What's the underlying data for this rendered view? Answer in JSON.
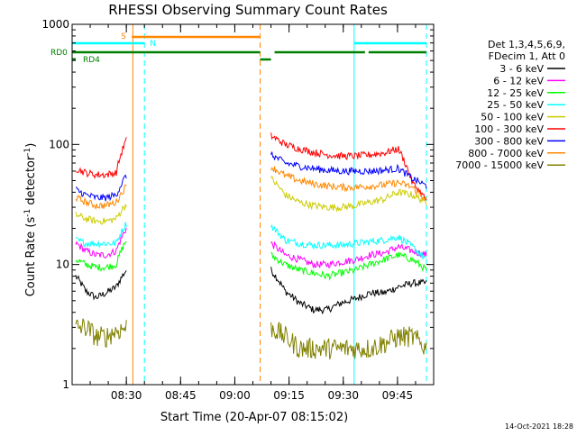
{
  "chart_data": {
    "type": "line",
    "title": "RHESSI Observing Summary Count Rates",
    "xlabel": "Start Time (20-Apr-07 08:15:02)",
    "ylabel_main": "Count Rate (s",
    "ylabel_sup1": "-1",
    "ylabel_mid": " detector",
    "ylabel_sup2": "-1",
    "ylabel_end": ")",
    "y_scale": "log",
    "ylim": [
      1,
      1000
    ],
    "xlim_minutes_after_0815": [
      0,
      100
    ],
    "x_ticks": [
      {
        "label": "08:30",
        "t": 15
      },
      {
        "label": "08:45",
        "t": 30
      },
      {
        "label": "09:00",
        "t": 45
      },
      {
        "label": "09:15",
        "t": 60
      },
      {
        "label": "09:30",
        "t": 75
      },
      {
        "label": "09:45",
        "t": 90
      }
    ],
    "y_ticks": [
      {
        "label": "1",
        "value": 1
      },
      {
        "label": "10",
        "value": 10
      },
      {
        "label": "100",
        "value": 100
      },
      {
        "label": "1000",
        "value": 1000
      }
    ],
    "legend": {
      "header1": "Det 1,3,4,5,6,9,",
      "header2": "FDecim 1, Att 0",
      "placement": "right"
    },
    "series": [
      {
        "name": "3 - 6 keV",
        "color": "#000000",
        "pre": [
          8,
          6,
          5.3,
          5.8,
          6.5,
          9
        ],
        "post": [
          9,
          6,
          4.8,
          4.2,
          4.2,
          4.8,
          5.2,
          5.8,
          5.8,
          6.5,
          7,
          7
        ]
      },
      {
        "name": "6 - 12 keV",
        "color": "#ff00ff",
        "pre": [
          15,
          13,
          12,
          12,
          13,
          20
        ],
        "post": [
          15,
          12,
          11,
          10,
          10,
          10.5,
          11,
          12,
          12.5,
          14,
          13,
          12
        ]
      },
      {
        "name": "12 - 25 keV",
        "color": "#00ff00",
        "pre": [
          11,
          10,
          9.5,
          9.5,
          10,
          16
        ],
        "post": [
          12,
          10,
          9,
          8.5,
          8,
          8.5,
          9,
          10,
          11,
          12,
          11,
          9
        ]
      },
      {
        "name": "25 - 50 keV",
        "color": "#00ffff",
        "pre": [
          16,
          15,
          15,
          15,
          15,
          22
        ],
        "post": [
          21,
          16,
          15,
          14.5,
          14.5,
          14.5,
          15,
          15.5,
          16,
          17,
          14,
          11
        ]
      },
      {
        "name": "50 - 100 keV",
        "color": "#cccc00",
        "pre": [
          26,
          24,
          23,
          23,
          24,
          32
        ],
        "post": [
          52,
          38,
          33,
          31,
          30,
          30,
          31,
          33,
          35,
          40,
          38,
          33
        ]
      },
      {
        "name": "100 - 300 keV",
        "color": "#ff0000",
        "pre": [
          63,
          58,
          56,
          56,
          58,
          110
        ],
        "post": [
          118,
          100,
          92,
          86,
          82,
          80,
          80,
          82,
          85,
          92,
          48,
          34
        ]
      },
      {
        "name": "300 - 800 keV",
        "color": "#0000ff",
        "pre": [
          42,
          38,
          36,
          36,
          38,
          55
        ],
        "post": [
          82,
          70,
          66,
          63,
          61,
          60,
          60,
          60,
          61,
          63,
          52,
          45
        ]
      },
      {
        "name": "800 - 7000 keV",
        "color": "#ff8800",
        "pre": [
          36,
          33,
          31,
          31,
          33,
          45
        ],
        "post": [
          65,
          55,
          50,
          47,
          45,
          44,
          44,
          45,
          46,
          48,
          44,
          34
        ]
      },
      {
        "name": "7000 - 15000 keV",
        "color": "#808000",
        "pre": [
          3,
          3,
          2.5,
          2.5,
          2.8,
          3
        ],
        "post": [
          3,
          2.5,
          2,
          2,
          2,
          2,
          2,
          2,
          2.2,
          2.5,
          2.5,
          2
        ]
      }
    ],
    "flags": [
      {
        "label": "S",
        "color": "#ff8800",
        "t0": 16.5,
        "t1": 52
      },
      {
        "label": "N",
        "color": "#00ffff",
        "t0": 0,
        "t1": 20
      },
      {
        "label": "N",
        "color": "#00ffff",
        "t0": 78,
        "t1": 98
      },
      {
        "label": "RD0",
        "color": "#008000",
        "t0": 0,
        "t1": 52
      },
      {
        "label": "RD0",
        "color": "#008000",
        "t0": 52,
        "t1": 55
      },
      {
        "label": "RD0",
        "color": "#008000",
        "t0": 56,
        "t1": 81
      },
      {
        "label": "RD0",
        "color": "#008000",
        "t0": 82,
        "t1": 98
      },
      {
        "label": "RD4",
        "color": "#008000",
        "t0": 0,
        "t1": 1
      }
    ],
    "vlines": [
      {
        "t": 0,
        "color": "#00ffff"
      },
      {
        "t": 16.8,
        "color": "#ff8800"
      },
      {
        "t": 20,
        "color": "#00ffff",
        "dashed": true
      },
      {
        "t": 52,
        "color": "#ff8800",
        "dashed": true
      },
      {
        "t": 78,
        "color": "#00ffff"
      },
      {
        "t": 98,
        "color": "#00ffff",
        "dashed": true
      }
    ],
    "grid": false,
    "axes_color": "#000000",
    "data_gap_minutes": [
      16,
      54
    ]
  },
  "footer": {
    "date_stamp": "14-Oct-2021 18:28"
  }
}
